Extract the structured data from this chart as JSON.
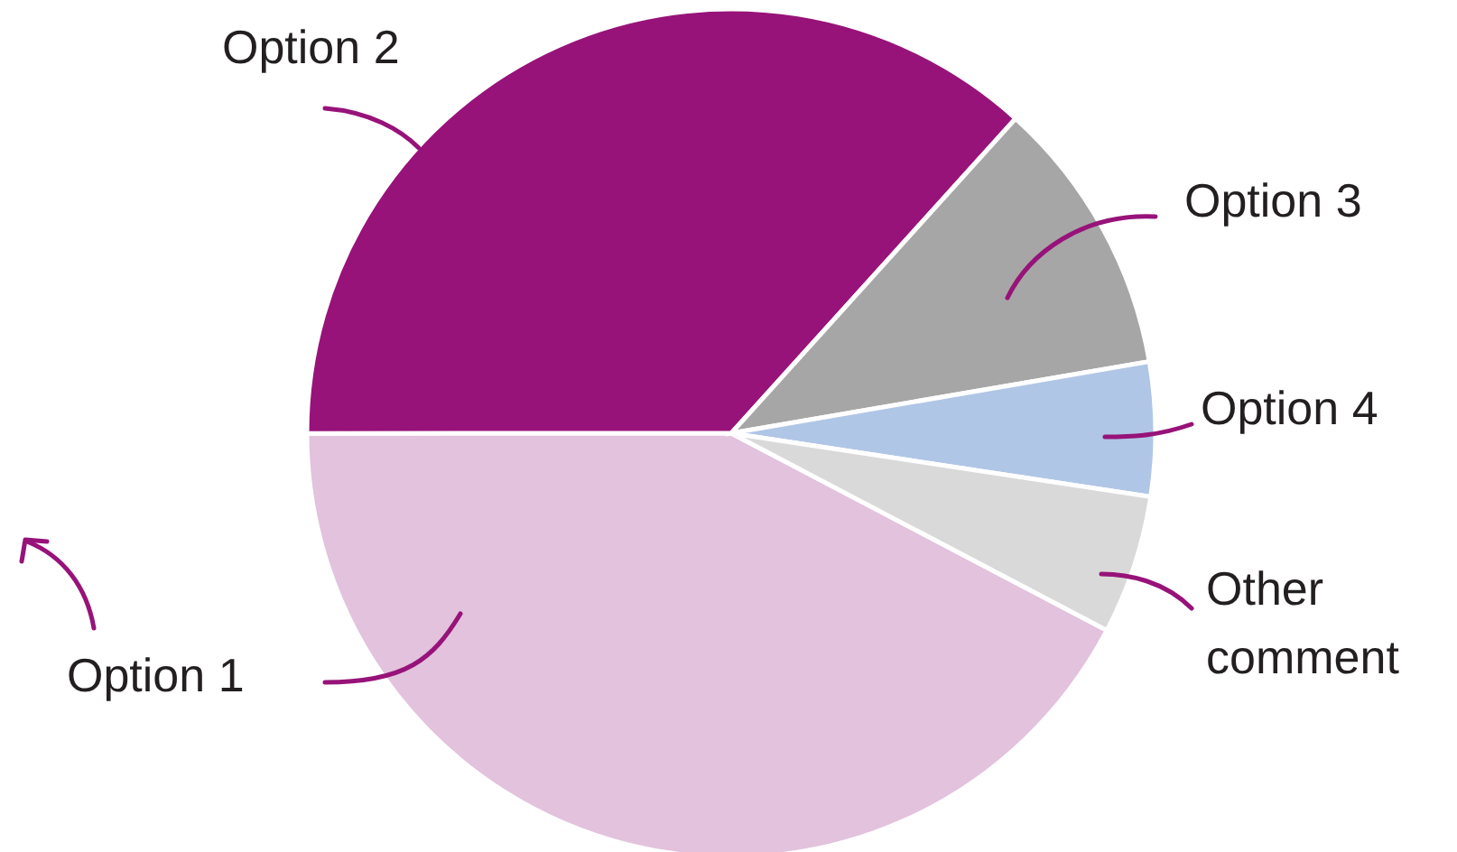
{
  "chart_data": {
    "type": "pie",
    "categories": [
      "Option 1",
      "Option 2",
      "Option 3",
      "Option 4",
      "Other comment"
    ],
    "values": [
      42.3,
      36.7,
      10.6,
      5.1,
      5.3
    ],
    "colors": [
      "#e2c2dd",
      "#971379",
      "#a6a6a6",
      "#b0c6e6",
      "#d9d9d9"
    ]
  }
}
